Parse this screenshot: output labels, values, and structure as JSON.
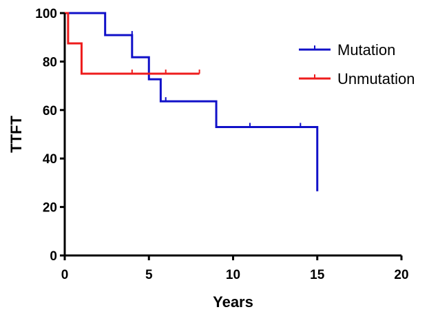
{
  "chart_data": {
    "type": "line",
    "subtype": "kaplan-meier step",
    "title": "",
    "xlabel": "Years",
    "ylabel": "TTFT",
    "xlim": [
      0,
      20
    ],
    "ylim": [
      0,
      100
    ],
    "x_ticks": [
      0,
      5,
      10,
      15,
      20
    ],
    "y_ticks": [
      0,
      20,
      40,
      60,
      80,
      100
    ],
    "x_tick_labels": [
      "0",
      "5",
      "10",
      "15",
      "20"
    ],
    "y_tick_labels": [
      "0",
      "20",
      "40",
      "60",
      "80",
      "100"
    ],
    "grid": false,
    "legend_position": "top-right",
    "series": [
      {
        "name": "Mutation",
        "color": "#1010c8",
        "steps": [
          [
            0,
            100
          ],
          [
            2.4,
            90.9
          ],
          [
            4.0,
            81.8
          ],
          [
            5.0,
            72.7
          ],
          [
            5.7,
            63.6
          ],
          [
            9.0,
            53.0
          ],
          [
            15.0,
            26.5
          ]
        ],
        "end_x": 15.0,
        "censored": [
          [
            4.0,
            90.9
          ],
          [
            6.0,
            63.6
          ],
          [
            11.0,
            53.0
          ],
          [
            14.0,
            53.0
          ]
        ]
      },
      {
        "name": "Unmutation",
        "color": "#ee1c1c",
        "steps": [
          [
            0,
            100
          ],
          [
            0.2,
            87.5
          ],
          [
            1.0,
            75.0
          ]
        ],
        "end_x": 8.0,
        "censored": [
          [
            4.0,
            75.0
          ],
          [
            6.0,
            75.0
          ],
          [
            8.0,
            75.0
          ]
        ]
      }
    ]
  }
}
